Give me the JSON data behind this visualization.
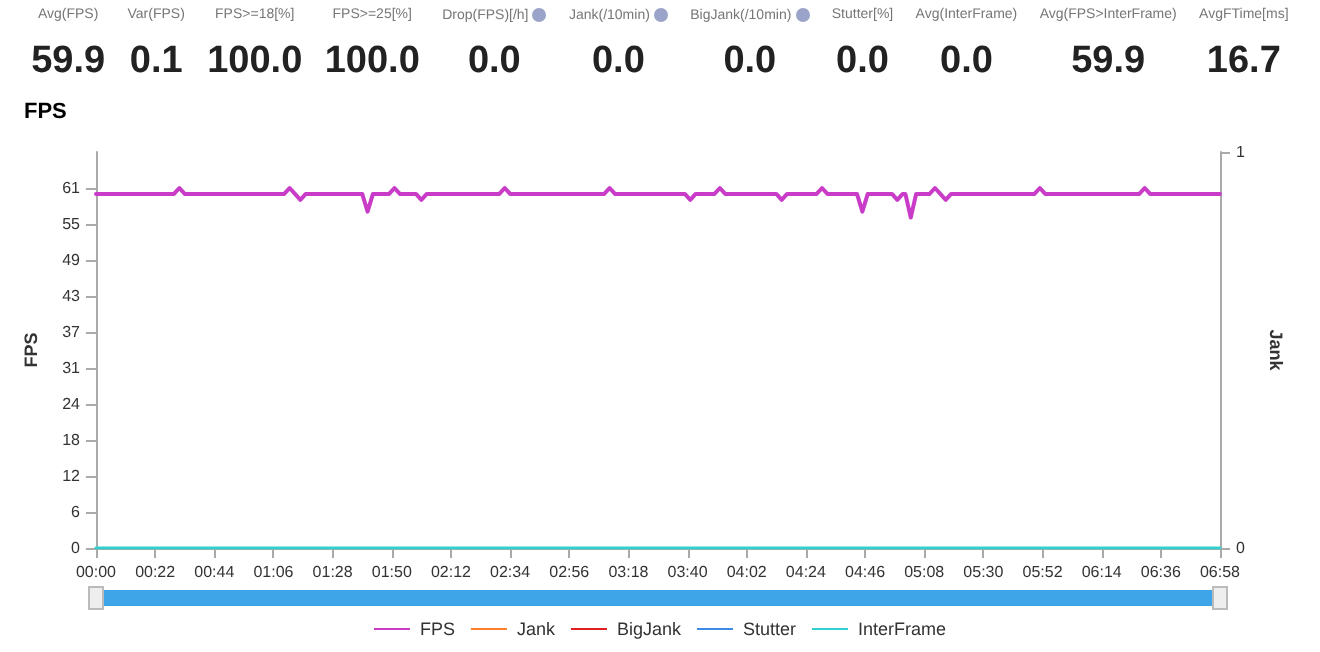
{
  "chart_data": [
    {
      "type": "other",
      "categories": [
        "Avg(FPS)",
        "Var(FPS)",
        "FPS>=18[%]",
        "FPS>=25[%]",
        "Drop(FPS)[/h]",
        "Jank(/10min)",
        "BigJank(/10min)",
        "Stutter[%]",
        "Avg(InterFrame)",
        "Avg(FPS>InterFrame)",
        "AvgFTime[ms]"
      ],
      "value_labels": [
        "59.9",
        "0.1",
        "100.0",
        "100.0",
        "0.0",
        "0.0",
        "0.0",
        "0.0",
        "0.0",
        "59.9",
        "16.7"
      ]
    },
    {
      "type": "line",
      "title": "FPS",
      "ylabel": "FPS",
      "y2label": "Jank",
      "legend": "bottom",
      "grid": false,
      "line_style": "solid",
      "marker": "none",
      "xlim": [
        0,
        418
      ],
      "xticks": [
        {
          "value": 0,
          "label": "00:00"
        },
        {
          "value": 22,
          "label": "00:22"
        },
        {
          "value": 44,
          "label": "00:44"
        },
        {
          "value": 66,
          "label": "01:06"
        },
        {
          "value": 88,
          "label": "01:28"
        },
        {
          "value": 110,
          "label": "01:50"
        },
        {
          "value": 132,
          "label": "02:12"
        },
        {
          "value": 154,
          "label": "02:34"
        },
        {
          "value": 176,
          "label": "02:56"
        },
        {
          "value": 198,
          "label": "03:18"
        },
        {
          "value": 220,
          "label": "03:40"
        },
        {
          "value": 242,
          "label": "04:02"
        },
        {
          "value": 264,
          "label": "04:24"
        },
        {
          "value": 286,
          "label": "04:46"
        },
        {
          "value": 308,
          "label": "05:08"
        },
        {
          "value": 330,
          "label": "05:30"
        },
        {
          "value": 352,
          "label": "05:52"
        },
        {
          "value": 374,
          "label": "06:14"
        },
        {
          "value": 396,
          "label": "06:36"
        },
        {
          "value": 418,
          "label": "06:58"
        }
      ],
      "ylim": [
        0,
        67.1
      ],
      "yticks": [
        0,
        {
          "value": 6.1,
          "label": "6"
        },
        {
          "value": 12.2,
          "label": "12"
        },
        {
          "value": 18.3,
          "label": "18"
        },
        {
          "value": 24.4,
          "label": "24"
        },
        {
          "value": 30.5,
          "label": "31"
        },
        {
          "value": 36.6,
          "label": "37"
        },
        {
          "value": 42.7,
          "label": "43"
        },
        {
          "value": 48.8,
          "label": "49"
        },
        {
          "value": 54.9,
          "label": "55"
        },
        61
      ],
      "y2lim": [
        0,
        1
      ],
      "y2ticks": [
        0,
        1
      ],
      "series": [
        {
          "name": "FPS",
          "color": "#c83cc8",
          "x": [
            0,
            29,
            31,
            33,
            70,
            72,
            74,
            76,
            78,
            99,
            101,
            103,
            109,
            111,
            113,
            119,
            121,
            123,
            150,
            152,
            154,
            189,
            191,
            193,
            219,
            221,
            223,
            230,
            232,
            234,
            253,
            255,
            257,
            268,
            270,
            272,
            283,
            285,
            287,
            296,
            298,
            300,
            301,
            303,
            305,
            310,
            312,
            314,
            316,
            318,
            349,
            351,
            353,
            388,
            390,
            392,
            418
          ],
          "values": [
            60,
            60,
            61,
            60,
            60,
            61,
            60,
            59,
            60,
            60,
            57,
            60,
            60,
            61,
            60,
            60,
            59,
            60,
            60,
            61,
            60,
            60,
            61,
            60,
            60,
            59,
            60,
            60,
            61,
            60,
            60,
            59,
            60,
            60,
            61,
            60,
            60,
            57,
            60,
            60,
            59,
            60,
            60,
            56,
            60,
            60,
            61,
            60,
            59,
            60,
            60,
            61,
            60,
            60,
            61,
            60,
            60
          ]
        },
        {
          "name": "Jank",
          "color": "#ff7f2a",
          "axis": "y2",
          "values": [
            null,
            null
          ]
        },
        {
          "name": "BigJank",
          "color": "#e02020",
          "axis": "y2",
          "values": [
            null,
            null
          ]
        },
        {
          "name": "Stutter",
          "color": "#3c8ce6",
          "axis": "y2",
          "values": [
            null,
            null
          ]
        },
        {
          "name": "InterFrame",
          "color": "#30d0d0",
          "axis": "y2",
          "x": [
            0,
            418
          ],
          "values": [
            0,
            0
          ]
        }
      ]
    }
  ]
}
